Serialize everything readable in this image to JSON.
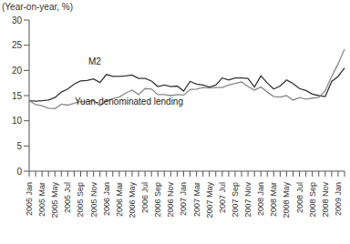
{
  "chart_data": {
    "type": "line",
    "ylabel": "(Year-on-year, %)",
    "categories": [
      "2005 Jan",
      null,
      "2005 Mar",
      null,
      "2005 May",
      null,
      "2005 Jul",
      null,
      "2005 Sep",
      null,
      "2005 Nov",
      null,
      "2006 Jan",
      null,
      "2006 Mar",
      null,
      "2006 May",
      null,
      "2006 Jul",
      null,
      "2006 Sep",
      null,
      "2006 Nov",
      null,
      "2007 Jan",
      null,
      "2007 Mar",
      null,
      "2007 May",
      null,
      "2007 Jul",
      null,
      "2007 Sep",
      null,
      "2007 Nov",
      null,
      "2008 Jan",
      null,
      "2008 Mar",
      null,
      "2008 May",
      null,
      "2008 Jul",
      null,
      "2008 Sep",
      null,
      "2008 Nov",
      null,
      "2009 Jan",
      null
    ],
    "series": [
      {
        "name": "M2",
        "color": "#333333",
        "values": [
          14,
          13.9,
          14,
          14.1,
          14.6,
          15.7,
          16.3,
          17.3,
          17.9,
          18,
          18.3,
          17.6,
          19.2,
          18.8,
          18.8,
          18.9,
          19.1,
          18.4,
          18.4,
          17.9,
          16.8,
          17.1,
          16.8,
          16.9,
          15.9,
          17.8,
          17.3,
          17.1,
          16.7,
          17.1,
          18.5,
          18.1,
          18.5,
          18.5,
          18.4,
          16.7,
          18.9,
          17.5,
          16.3,
          16.9,
          18.1,
          17.4,
          16.4,
          16,
          15.3,
          15,
          14.8,
          17.8,
          18.8,
          20.5
        ]
      },
      {
        "name": "Yuan-denominated lending",
        "color": "#888888",
        "values": [
          14,
          13.2,
          13,
          12.5,
          12.4,
          13.3,
          13.1,
          13.5,
          13.8,
          13.8,
          14,
          13,
          14,
          14.4,
          14.7,
          15.5,
          16.1,
          15.2,
          16.4,
          16.3,
          15.2,
          15.2,
          15,
          15.2,
          15.1,
          16.2,
          16.3,
          16.6,
          16.5,
          16.6,
          16.6,
          17.1,
          17.4,
          17.7,
          16.8,
          16.1,
          16.7,
          15.7,
          14.8,
          14.7,
          15,
          14.1,
          14.6,
          14.3,
          14.5,
          14.6,
          16,
          18.8,
          21.3,
          24.2
        ]
      }
    ],
    "ylim": [
      0,
      30
    ],
    "yticks": [
      0,
      5,
      10,
      15,
      20,
      25,
      30
    ],
    "grid": false
  }
}
